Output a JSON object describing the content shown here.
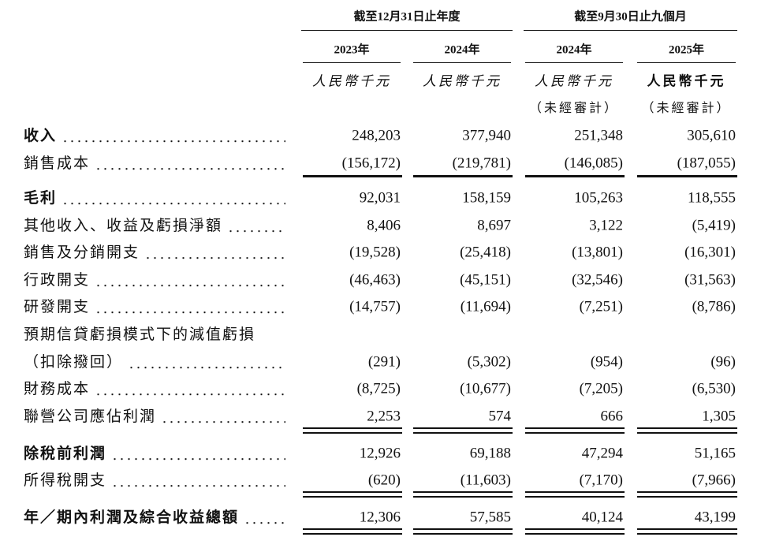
{
  "header": {
    "column_groups": [
      {
        "label": "截至12月31日止年度",
        "columns": [
          {
            "year": "2023年",
            "unit": "人民幣千元"
          },
          {
            "year": "2024年",
            "unit": "人民幣千元"
          }
        ]
      },
      {
        "label": "截至9月30日止九個月",
        "columns": [
          {
            "year": "2024年",
            "unit": "人民幣千元",
            "note": "（未經審計）"
          },
          {
            "year": "2025年",
            "unit": "人民幣千元",
            "note": "（未經審計）",
            "unit_bold": true
          }
        ]
      }
    ]
  },
  "table": {
    "rows": [
      {
        "label": "收入",
        "bold": true,
        "values": [
          "248,203",
          "377,940",
          "251,348",
          "305,610"
        ]
      },
      {
        "label": "銷售成本",
        "values": [
          "(156,172)",
          "(219,781)",
          "(146,085)",
          "(187,055)"
        ],
        "rule": "single"
      },
      {
        "label": "毛利",
        "bold": true,
        "values": [
          "92,031",
          "158,159",
          "105,263",
          "118,555"
        ]
      },
      {
        "label": "其他收入、收益及虧損淨額",
        "values": [
          "8,406",
          "8,697",
          "3,122",
          "(5,419)"
        ]
      },
      {
        "label": "銷售及分銷開支",
        "values": [
          "(19,528)",
          "(25,418)",
          "(13,801)",
          "(16,301)"
        ]
      },
      {
        "label": "行政開支",
        "values": [
          "(46,463)",
          "(45,151)",
          "(32,546)",
          "(31,563)"
        ]
      },
      {
        "label": "研發開支",
        "values": [
          "(14,757)",
          "(11,694)",
          "(7,251)",
          "(8,786)"
        ]
      },
      {
        "label": "預期信貸虧損模式下的減值虧損",
        "label_cont": "（扣除撥回）",
        "values": [
          "(291)",
          "(5,302)",
          "(954)",
          "(96)"
        ]
      },
      {
        "label": "財務成本",
        "values": [
          "(8,725)",
          "(10,677)",
          "(7,205)",
          "(6,530)"
        ]
      },
      {
        "label": "聯營公司應佔利潤",
        "values": [
          "2,253",
          "574",
          "666",
          "1,305"
        ],
        "rule": "double"
      },
      {
        "label": "除稅前利潤",
        "bold": true,
        "values": [
          "12,926",
          "69,188",
          "47,294",
          "51,165"
        ]
      },
      {
        "label": "所得稅開支",
        "values": [
          "(620)",
          "(11,603)",
          "(7,170)",
          "(7,966)"
        ],
        "rule": "double"
      },
      {
        "label": "年／期內利潤及綜合收益總額",
        "bold": true,
        "values": [
          "12,306",
          "57,585",
          "40,124",
          "43,199"
        ],
        "rule": "double"
      }
    ]
  }
}
